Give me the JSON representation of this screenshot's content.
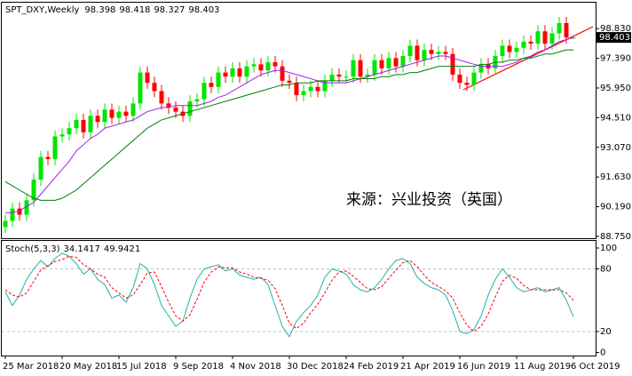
{
  "chart_data": [
    {
      "type": "candlestick",
      "title": "SPT_DXY,Weekly",
      "annotation": "来源：兴业投资（英国）",
      "categories": [
        "25 Mar 2018",
        null,
        null,
        null,
        null,
        null,
        null,
        null,
        "20 May 2018",
        null,
        null,
        null,
        null,
        null,
        null,
        null,
        "15 Jul 2018",
        null,
        null,
        null,
        null,
        null,
        null,
        null,
        "9 Sep 2018",
        null,
        null,
        null,
        null,
        null,
        null,
        null,
        "4 Nov 2018",
        null,
        null,
        null,
        null,
        null,
        null,
        null,
        "30 Dec 2018",
        null,
        null,
        null,
        null,
        null,
        null,
        null,
        "24 Feb 2019",
        null,
        null,
        null,
        null,
        null,
        null,
        null,
        "21 Apr 2019",
        null,
        null,
        null,
        null,
        null,
        null,
        null,
        "16 Jun 2019",
        null,
        null,
        null,
        null,
        null,
        null,
        null,
        "11 Aug 2019",
        null,
        null,
        null,
        null,
        null,
        null,
        null,
        "6 Oct 2019"
      ],
      "open": [
        89.2,
        89.5,
        90.1,
        89.8,
        90.5,
        91.5,
        92.6,
        92.5,
        93.6,
        93.7,
        94.0,
        94.4,
        93.8,
        94.6,
        94.3,
        94.9,
        94.5,
        94.8,
        94.6,
        95.2,
        96.7,
        96.2,
        95.8,
        95.2,
        95.0,
        94.8,
        94.6,
        95.3,
        95.4,
        96.2,
        96.0,
        96.7,
        96.5,
        96.9,
        96.5,
        97.0,
        97.1,
        96.8,
        97.2,
        97.0,
        96.3,
        96.2,
        95.6,
        95.8,
        96.0,
        95.8,
        96.3,
        96.6,
        96.5,
        96.5,
        97.3,
        96.5,
        96.6,
        97.3,
        96.9,
        97.4,
        97.0,
        97.5,
        98.0,
        97.3,
        97.8,
        97.6,
        97.7,
        97.6,
        96.6,
        96.2,
        96.1,
        96.7,
        97.1,
        96.9,
        97.5,
        98.0,
        97.7,
        97.9,
        98.2,
        98.1,
        98.7,
        98.1,
        98.6,
        99.1,
        98.398
      ],
      "high": [
        89.8,
        90.4,
        90.4,
        90.8,
        91.8,
        92.9,
        92.9,
        93.9,
        94.0,
        94.3,
        94.7,
        94.7,
        94.9,
        94.9,
        95.2,
        95.2,
        95.1,
        95.1,
        95.5,
        97.0,
        97.0,
        96.5,
        96.1,
        95.5,
        95.3,
        95.1,
        95.6,
        95.7,
        96.5,
        96.5,
        97.0,
        97.0,
        97.2,
        97.2,
        97.3,
        97.4,
        97.4,
        97.5,
        97.5,
        97.3,
        96.6,
        96.5,
        96.1,
        96.3,
        96.3,
        96.6,
        96.9,
        96.9,
        96.8,
        97.6,
        97.6,
        96.9,
        97.6,
        97.6,
        97.7,
        97.7,
        97.8,
        98.3,
        98.3,
        98.1,
        98.1,
        98.0,
        98.0,
        97.9,
        96.9,
        96.5,
        97.0,
        97.4,
        97.4,
        97.8,
        98.3,
        98.3,
        98.2,
        98.5,
        98.5,
        99.0,
        99.0,
        98.9,
        99.4,
        99.4,
        98.418
      ],
      "low": [
        88.9,
        89.2,
        89.5,
        89.5,
        90.2,
        91.2,
        92.2,
        92.2,
        93.3,
        93.4,
        93.7,
        93.5,
        93.5,
        94.0,
        94.0,
        94.2,
        94.2,
        94.3,
        94.3,
        94.9,
        95.9,
        95.5,
        94.9,
        94.7,
        94.5,
        94.3,
        94.3,
        95.0,
        95.1,
        95.7,
        95.7,
        96.2,
        96.2,
        96.2,
        96.2,
        96.7,
        96.5,
        96.5,
        96.7,
        96.0,
        95.9,
        95.3,
        95.3,
        95.5,
        95.5,
        95.5,
        96.0,
        96.2,
        96.2,
        96.2,
        96.2,
        96.2,
        96.3,
        96.6,
        96.6,
        96.7,
        96.7,
        97.2,
        97.0,
        97.0,
        97.3,
        97.3,
        97.3,
        96.3,
        95.9,
        95.8,
        95.8,
        96.4,
        96.6,
        96.6,
        97.2,
        97.4,
        97.4,
        97.6,
        97.8,
        97.8,
        97.8,
        97.8,
        98.3,
        98.1,
        98.327
      ],
      "close": [
        89.5,
        90.1,
        89.8,
        90.5,
        91.5,
        92.6,
        92.5,
        93.6,
        93.7,
        94.0,
        94.4,
        93.8,
        94.6,
        94.3,
        94.9,
        94.5,
        94.8,
        94.6,
        95.2,
        96.7,
        96.2,
        95.8,
        95.2,
        95.0,
        94.8,
        94.6,
        95.3,
        95.4,
        96.2,
        96.0,
        96.7,
        96.5,
        96.9,
        96.5,
        97.0,
        97.1,
        96.8,
        97.2,
        97.0,
        96.3,
        96.2,
        95.6,
        95.8,
        96.0,
        95.8,
        96.3,
        96.6,
        96.5,
        96.5,
        97.3,
        96.5,
        96.6,
        97.3,
        96.9,
        97.4,
        97.0,
        97.5,
        98.0,
        97.3,
        97.8,
        97.6,
        97.7,
        97.6,
        96.6,
        96.2,
        96.1,
        96.7,
        97.1,
        96.9,
        97.5,
        98.0,
        97.7,
        97.9,
        98.2,
        98.1,
        98.7,
        98.1,
        98.6,
        99.1,
        98.398,
        98.403
      ],
      "up_color": "#00e600",
      "down_color": "#ff0000",
      "series": [
        {
          "color": "#a020f0",
          "values": [
            89.9,
            89.9,
            90.0,
            90.2,
            90.4,
            90.8,
            91.2,
            91.6,
            92.0,
            92.4,
            92.9,
            93.2,
            93.5,
            93.7,
            94.0,
            94.1,
            94.2,
            94.3,
            94.4,
            94.6,
            94.8,
            94.9,
            95.0,
            95.0,
            95.1,
            95.1,
            95.1,
            95.1,
            95.2,
            95.3,
            95.5,
            95.6,
            95.8,
            96.0,
            96.2,
            96.4,
            96.6,
            96.7,
            96.8,
            96.8,
            96.7,
            96.6,
            96.5,
            96.4,
            96.3,
            96.2,
            96.2,
            96.2,
            96.2,
            96.3,
            96.4,
            96.5,
            96.6,
            96.7,
            96.8,
            96.9,
            97.0,
            97.1,
            97.2,
            97.3,
            97.4,
            97.5,
            97.5,
            97.4,
            97.3,
            97.2,
            97.1,
            97.0,
            97.0,
            97.0,
            97.0,
            97.1,
            97.2,
            97.4,
            97.5,
            97.7,
            97.8,
            98.0,
            98.2,
            98.3,
            98.4
          ]
        },
        {
          "color": "#008000",
          "values": [
            91.4,
            91.2,
            91.0,
            90.8,
            90.6,
            90.5,
            90.5,
            90.5,
            90.6,
            90.8,
            91.0,
            91.3,
            91.6,
            91.9,
            92.2,
            92.5,
            92.8,
            93.1,
            93.4,
            93.7,
            94.0,
            94.2,
            94.4,
            94.5,
            94.6,
            94.7,
            94.8,
            94.9,
            95.0,
            95.1,
            95.2,
            95.3,
            95.4,
            95.5,
            95.6,
            95.7,
            95.8,
            95.9,
            96.0,
            96.1,
            96.1,
            96.2,
            96.2,
            96.2,
            96.3,
            96.3,
            96.3,
            96.3,
            96.3,
            96.4,
            96.4,
            96.4,
            96.4,
            96.5,
            96.5,
            96.6,
            96.6,
            96.7,
            96.7,
            96.8,
            96.9,
            97.0,
            97.0,
            97.0,
            97.0,
            97.0,
            97.0,
            97.1,
            97.1,
            97.2,
            97.2,
            97.3,
            97.3,
            97.4,
            97.4,
            97.5,
            97.6,
            97.6,
            97.7,
            97.8,
            97.8
          ]
        }
      ],
      "ylim": [
        88.66,
        100.09
      ],
      "yticks": [
        {
          "value": 88.75,
          "label": "88.750"
        },
        {
          "value": 90.19,
          "label": "90.190"
        },
        {
          "value": 91.63,
          "label": "91.630"
        },
        {
          "value": 93.07,
          "label": "93.070"
        },
        {
          "value": 94.51,
          "label": "94.510"
        },
        {
          "value": 95.95,
          "label": "95.950"
        },
        {
          "value": 97.39,
          "label": "97.390"
        },
        {
          "value": 98.83,
          "label": "98.830"
        }
      ]
    },
    {
      "type": "line",
      "title": "Stoch(5,3,3)",
      "series": [
        {
          "color": "#20b2aa",
          "values": [
            58,
            45,
            55,
            70,
            80,
            88,
            82,
            90,
            95,
            92,
            85,
            75,
            80,
            70,
            65,
            52,
            55,
            48,
            62,
            85,
            80,
            65,
            45,
            35,
            25,
            30,
            52,
            70,
            80,
            82,
            84,
            78,
            80,
            74,
            72,
            70,
            72,
            65,
            45,
            25,
            15,
            30,
            38,
            45,
            55,
            72,
            80,
            78,
            75,
            65,
            60,
            58,
            62,
            70,
            80,
            88,
            90,
            85,
            72,
            66,
            62,
            60,
            55,
            40,
            20,
            18,
            22,
            35,
            55,
            70,
            80,
            72,
            62,
            58,
            60,
            62,
            58,
            60,
            62,
            50,
            34.1417
          ]
        },
        {
          "color": "#ff0000",
          "dashed": true,
          "values": [
            60,
            55,
            53,
            57,
            68,
            79,
            83,
            87,
            89,
            92,
            91,
            84,
            80,
            75,
            72,
            62,
            57,
            52,
            55,
            65,
            76,
            77,
            63,
            48,
            35,
            30,
            36,
            51,
            67,
            77,
            82,
            81,
            81,
            77,
            75,
            72,
            71,
            69,
            61,
            45,
            28,
            23,
            28,
            38,
            46,
            57,
            69,
            77,
            78,
            73,
            67,
            61,
            60,
            63,
            71,
            79,
            86,
            88,
            82,
            74,
            67,
            63,
            59,
            52,
            38,
            26,
            20,
            25,
            37,
            53,
            68,
            74,
            71,
            64,
            60,
            60,
            60,
            60,
            60,
            57,
            49.9421
          ]
        }
      ],
      "ylim": [
        -3,
        106.8
      ],
      "yticks": [
        0,
        20,
        80,
        100
      ],
      "levels": [
        20,
        80
      ]
    }
  ]
}
